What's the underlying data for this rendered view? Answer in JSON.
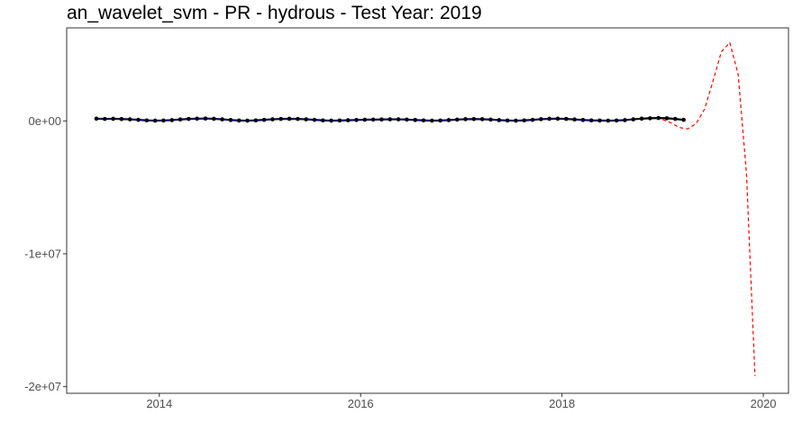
{
  "chart_data": {
    "type": "line",
    "title": "an_wavelet_svm - PR - hydrous - Test Year: 2019",
    "xlabel": "",
    "ylabel": "",
    "x_ticks": [
      {
        "value": 2014,
        "label": "2014"
      },
      {
        "value": 2016,
        "label": "2016"
      },
      {
        "value": 2018,
        "label": "2018"
      },
      {
        "value": 2020,
        "label": "2020"
      }
    ],
    "y_ticks": [
      {
        "value": 0,
        "label": "0e+00"
      },
      {
        "value": -10000000,
        "label": "-1e+07"
      },
      {
        "value": -20000000,
        "label": "-2e+07"
      }
    ],
    "xlim": [
      2013.08,
      2020.25
    ],
    "ylim": [
      -20500000,
      7000000
    ],
    "grid": false,
    "legend": "none",
    "series": [
      {
        "role": "observed",
        "style": "solid line with points",
        "color": "#000000",
        "x_start": 2013.375,
        "x_step": 0.08333,
        "values": [
          170000,
          150000,
          160000,
          140000,
          120000,
          80000,
          40000,
          20000,
          30000,
          60000,
          110000,
          150000,
          170000,
          180000,
          160000,
          120000,
          70000,
          30000,
          20000,
          40000,
          80000,
          120000,
          150000,
          160000,
          150000,
          120000,
          80000,
          40000,
          20000,
          30000,
          50000,
          70000,
          90000,
          100000,
          110000,
          120000,
          120000,
          100000,
          70000,
          40000,
          20000,
          30000,
          60000,
          100000,
          130000,
          140000,
          130000,
          100000,
          60000,
          30000,
          20000,
          40000,
          80000,
          130000,
          160000,
          170000,
          150000,
          110000,
          70000,
          40000,
          30000,
          20000,
          30000,
          60000,
          120000,
          170000,
          200000,
          220000,
          200000,
          150000,
          80000
        ]
      },
      {
        "role": "fitted",
        "style": "solid line",
        "color": "#0000cc",
        "x_start": 2013.375,
        "x_step": 0.08333,
        "values": [
          170000,
          150000,
          160000,
          140000,
          120000,
          80000,
          40000,
          20000,
          30000,
          60000,
          110000,
          150000,
          170000,
          180000,
          160000,
          120000,
          70000,
          30000,
          20000,
          40000,
          80000,
          120000,
          150000,
          160000,
          150000,
          120000,
          80000,
          40000,
          20000,
          30000,
          50000,
          70000,
          90000,
          100000,
          110000,
          120000,
          120000,
          100000,
          70000,
          40000,
          20000,
          30000,
          60000,
          100000,
          130000,
          140000,
          130000,
          100000,
          60000,
          30000,
          20000,
          40000,
          80000,
          130000,
          160000,
          170000,
          150000,
          110000,
          70000,
          40000,
          30000,
          20000,
          30000,
          60000,
          120000
        ]
      },
      {
        "role": "forecast",
        "style": "dashed line",
        "color": "#ff0000",
        "x": [
          2019.0,
          2019.083,
          2019.167,
          2019.25,
          2019.333,
          2019.417,
          2019.5,
          2019.583,
          2019.667,
          2019.75,
          2019.833,
          2019.917
        ],
        "values": [
          100000,
          -150000,
          -500000,
          -600000,
          -200000,
          900000,
          3000000,
          5200000,
          5900000,
          3500000,
          -4000000,
          -19200000
        ]
      }
    ]
  }
}
